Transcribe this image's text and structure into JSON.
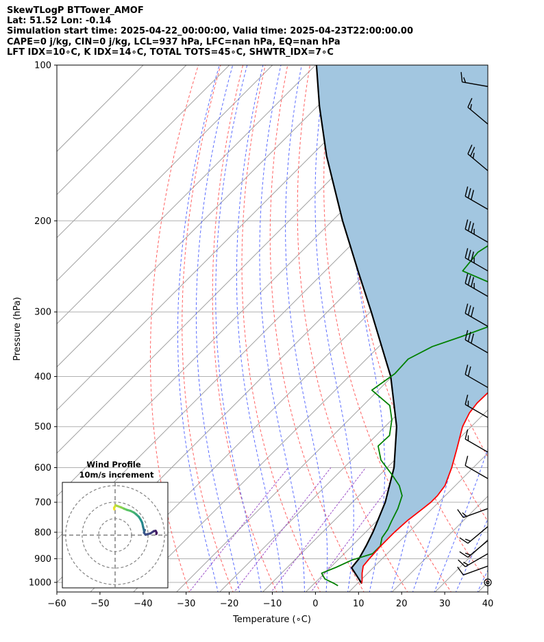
{
  "header": {
    "line1": "SkewTLogP BTTower_AMOF",
    "line2": "Lat: 51.52   Lon: -0.14",
    "line3": "Simulation start time: 2025-04-22_00:00:00, Valid time: 2025-04-23T22:00:00.00",
    "line4": "CAPE=0 j/kg, CIN=0 j/kg, LCL=937 hPa, LFC=nan hPa, EQ=nan hPa",
    "line5": "LFT IDX=10∘C, K IDX=14∘C, TOTAL TOTS=45∘C, SHWTR_IDX=7∘C"
  },
  "colors": {
    "temperature": "#ff0000",
    "dewpoint": "#008000",
    "parcel": "#000000",
    "cape_fill": "#a2c6e0",
    "isotherm": "#a0a0a0",
    "dry_adiabat": "#ff6060",
    "moist_adiabat": "#5a6cff",
    "mixing_ratio": "#9b4fc8"
  },
  "chart_data": [
    {
      "type": "line",
      "subtype": "skew-t log-p",
      "xlabel": "Temperature (∘C)",
      "ylabel": "Pressure (hPa)",
      "xlim": [
        -60,
        40
      ],
      "ylim": [
        1050,
        100
      ],
      "y_scale": "log",
      "x_ticks": [
        "−60",
        "−50",
        "−40",
        "−30",
        "−20",
        "−10",
        "0",
        "10",
        "20",
        "30",
        "40"
      ],
      "y_ticks": [
        "100",
        "200",
        "300",
        "400",
        "500",
        "600",
        "700",
        "800",
        "900",
        "1000"
      ],
      "x_tick_values": [
        -60,
        -50,
        -40,
        -30,
        -20,
        -10,
        0,
        10,
        20,
        30,
        40
      ],
      "y_tick_values": [
        100,
        200,
        300,
        400,
        500,
        600,
        700,
        800,
        900,
        1000
      ],
      "grid": true,
      "series": [
        {
          "role": "temperature",
          "p": [
            1005,
            990,
            960,
            930,
            900,
            850,
            800,
            760,
            720,
            700,
            680,
            650,
            600,
            550,
            500,
            470,
            450,
            430,
            400,
            370,
            340,
            310,
            290,
            270,
            255,
            240,
            225,
            210,
            200,
            190,
            180,
            170,
            160,
            150,
            140,
            130,
            120,
            110,
            105,
            100
          ],
          "t": [
            11.0,
            10.3,
            8.7,
            7.3,
            7.0,
            6.7,
            6.7,
            7.0,
            7.8,
            8.2,
            8.2,
            7.6,
            5.0,
            1.7,
            -2.0,
            -3.6,
            -4.1,
            -4.0,
            -4.4,
            -6.8,
            -11.3,
            -16.1,
            -19.2,
            -20.8,
            -23.7,
            -25.6,
            -26.7,
            -29.1,
            -31.6,
            -33.2,
            -34.4,
            -35.8,
            -37.1,
            -37.5,
            -38.8,
            -40.1,
            -41.5,
            -43.4,
            -43.6,
            -44.6
          ]
        },
        {
          "role": "dewpoint",
          "p": [
            1015,
            1005,
            985,
            960,
            935,
            905,
            880,
            850,
            820,
            790,
            760,
            720,
            680,
            650,
            620,
            580,
            545,
            520,
            485,
            455,
            425,
            395,
            370,
            350,
            335,
            315,
            300,
            290,
            280,
            265,
            250,
            230,
            215,
            205,
            200,
            190,
            180,
            175,
            160,
            150,
            140,
            130,
            120,
            110,
            100
          ],
          "t": [
            6.0,
            4.6,
            1.4,
            -0.7,
            1.3,
            3.3,
            6.6,
            6.6,
            5.1,
            4.5,
            3.4,
            2.0,
            0.0,
            -3.0,
            -7.1,
            -13.2,
            -17.1,
            -16.9,
            -20.0,
            -23.8,
            -31.5,
            -30.0,
            -30.3,
            -27.6,
            -23.2,
            -17.7,
            -19.3,
            -18.9,
            -21.4,
            -28.0,
            -38.1,
            -38.9,
            -37.0,
            -38.2,
            -38.6,
            -39.0,
            -40.1,
            -41.3,
            -43.0,
            -45.2,
            -47.1,
            -48.4,
            -49.4,
            -51.8,
            -53.4
          ]
        },
        {
          "role": "parcel",
          "p": [
            1005,
            937,
            900,
            850,
            800,
            700,
            600,
            500,
            400,
            300,
            250,
            200,
            150,
            120,
            100
          ],
          "t": [
            11.0,
            5.0,
            4.6,
            3.3,
            1.7,
            -2.4,
            -8.4,
            -17.3,
            -30.3,
            -49.8,
            -62.4,
            -77.6,
            -96.3,
            -109.6,
            -119.8
          ]
        }
      ],
      "wind_barbs": {
        "p": [
          1000,
          930,
          880,
          830,
          780,
          720,
          630,
          560,
          480,
          420,
          360,
          320,
          280,
          250,
          220,
          190,
          160,
          130,
          110
        ],
        "speed_kt": [
          0,
          10,
          15,
          15,
          15,
          15,
          10,
          15,
          15,
          20,
          30,
          30,
          35,
          35,
          35,
          30,
          25,
          15,
          15
        ],
        "dir_deg": [
          0,
          250,
          240,
          230,
          230,
          250,
          300,
          300,
          300,
          300,
          300,
          300,
          300,
          300,
          300,
          300,
          310,
          310,
          280
        ]
      }
    },
    {
      "type": "line",
      "subtype": "hodograph",
      "title": "Wind Profile",
      "subtitle": "10m/s increment",
      "u": [
        0.5,
        0.6,
        -0.3,
        -1.0,
        -3.5,
        -5.5,
        -7.2,
        -9.4,
        -11.4,
        -12.8,
        -14.4,
        -15.6,
        -16.4,
        -17.0,
        -17.6,
        -18.0,
        -17.5,
        -18.4,
        -21.4,
        -23.5,
        -24.6,
        -25.2,
        -25.0
      ],
      "v": [
        -15.6,
        -16.5,
        -18.1,
        -17.8,
        -16.9,
        -16.0,
        -15.3,
        -14.7,
        -13.7,
        -12.6,
        -11.1,
        -9.2,
        -7.6,
        -4.9,
        -2.5,
        -3.1,
        -1.5,
        -0.3,
        -1.0,
        -2.4,
        -2.6,
        -1.4,
        -0.7
      ],
      "rings": [
        10,
        20,
        30
      ],
      "xlim": [
        -32,
        32
      ],
      "ylim": [
        -32,
        32
      ]
    }
  ]
}
